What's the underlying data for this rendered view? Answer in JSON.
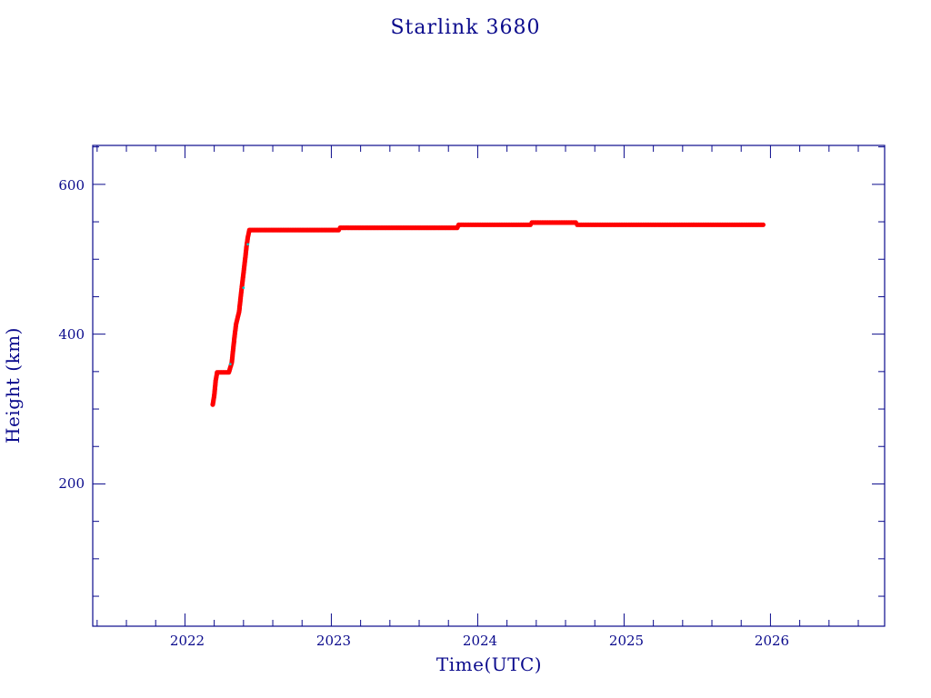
{
  "chart_data": {
    "type": "scatter",
    "title": "Starlink 3680",
    "xlabel": "Time(UTC)",
    "ylabel": "Height (km)",
    "xlim": [
      2021.37,
      2026.78
    ],
    "ylim": [
      10,
      652
    ],
    "x_ticks": [
      "2022",
      "2023",
      "2024",
      "2025",
      "2026"
    ],
    "y_ticks": [
      "200",
      "400",
      "600"
    ],
    "grid": false,
    "colors": {
      "axis": "#0a0a8c",
      "series": "#ff0000",
      "accent": "#00c8c8"
    },
    "series": [
      {
        "values": [
          [
            2022.19,
            306
          ],
          [
            2022.2,
            318
          ],
          [
            2022.21,
            338
          ],
          [
            2022.22,
            349
          ],
          [
            2022.25,
            349
          ],
          [
            2022.28,
            349
          ],
          [
            2022.3,
            349
          ],
          [
            2022.32,
            362
          ],
          [
            2022.33,
            381
          ],
          [
            2022.34,
            399
          ],
          [
            2022.35,
            414
          ],
          [
            2022.37,
            430
          ],
          [
            2022.38,
            448
          ],
          [
            2022.39,
            465
          ],
          [
            2022.4,
            481
          ],
          [
            2022.41,
            498
          ],
          [
            2022.42,
            516
          ],
          [
            2022.43,
            530
          ],
          [
            2022.44,
            539
          ],
          [
            2022.5,
            539
          ],
          [
            2022.6,
            539
          ],
          [
            2022.7,
            539
          ],
          [
            2022.8,
            539
          ],
          [
            2022.9,
            539
          ],
          [
            2023.0,
            539
          ],
          [
            2023.05,
            539
          ],
          [
            2023.06,
            542
          ],
          [
            2023.15,
            542
          ],
          [
            2023.25,
            542
          ],
          [
            2023.35,
            542
          ],
          [
            2023.45,
            542
          ],
          [
            2023.55,
            542
          ],
          [
            2023.65,
            542
          ],
          [
            2023.75,
            542
          ],
          [
            2023.86,
            542
          ],
          [
            2023.87,
            546
          ],
          [
            2023.95,
            546
          ],
          [
            2024.05,
            546
          ],
          [
            2024.15,
            546
          ],
          [
            2024.25,
            546
          ],
          [
            2024.36,
            546
          ],
          [
            2024.37,
            549
          ],
          [
            2024.45,
            549
          ],
          [
            2024.55,
            549
          ],
          [
            2024.67,
            549
          ],
          [
            2024.68,
            546
          ],
          [
            2024.78,
            546
          ],
          [
            2024.9,
            546
          ],
          [
            2025.0,
            546
          ],
          [
            2025.1,
            546
          ],
          [
            2025.2,
            546
          ],
          [
            2025.3,
            546
          ],
          [
            2025.4,
            546
          ],
          [
            2025.5,
            546
          ],
          [
            2025.6,
            546
          ],
          [
            2025.7,
            546
          ],
          [
            2025.8,
            546
          ],
          [
            2025.9,
            546
          ],
          [
            2025.95,
            546
          ]
        ],
        "highlight_values": [
          [
            2022.31,
            360
          ],
          [
            2022.4,
            462
          ],
          [
            2022.43,
            520
          ]
        ]
      }
    ]
  }
}
